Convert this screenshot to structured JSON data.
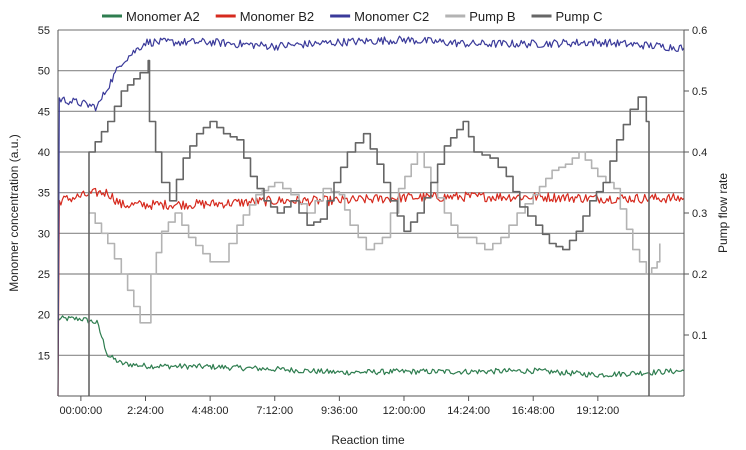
{
  "chart_data": {
    "type": "line",
    "xlabel": "Reaction time",
    "ylabel_left": "Monomer concentration (a.u.)",
    "ylabel_right": "Pump flow rate",
    "x_ticks": [
      "00:00:00",
      "2:24:00",
      "4:48:00",
      "7:12:00",
      "9:36:00",
      "12:00:00",
      "14:24:00",
      "16:48:00",
      "19:12:00"
    ],
    "x_tick_hours": [
      0,
      2.4,
      4.8,
      7.2,
      9.6,
      12.0,
      14.4,
      16.8,
      19.2
    ],
    "xlim_hours": [
      -0.85,
      22.4
    ],
    "ylim_left": [
      10,
      55
    ],
    "y_ticks_left": [
      15,
      20,
      25,
      30,
      35,
      40,
      45,
      50,
      55
    ],
    "ylim_right": [
      0,
      0.6
    ],
    "y_ticks_right": [
      "0.1",
      "0.2",
      "0.3",
      "0.4",
      "0.5",
      "0.6"
    ],
    "grid": true,
    "legend_position": "top",
    "series": [
      {
        "name": "Monomer A2",
        "color": "#2e7d4f",
        "axis": "left",
        "points": [
          [
            -0.85,
            19.5
          ],
          [
            0,
            19.5
          ],
          [
            0.6,
            19
          ],
          [
            1,
            15
          ],
          [
            1.5,
            14
          ],
          [
            2.4,
            13.7
          ],
          [
            4.8,
            13.6
          ],
          [
            7.2,
            13.3
          ],
          [
            9.6,
            12.9
          ],
          [
            12,
            13
          ],
          [
            14.4,
            13
          ],
          [
            16.8,
            13.1
          ],
          [
            19.2,
            12.6
          ],
          [
            20.5,
            12.8
          ],
          [
            22.4,
            13.1
          ]
        ]
      },
      {
        "name": "Monomer B2",
        "color": "#d62a1e",
        "axis": "left",
        "points": [
          [
            -0.85,
            10
          ],
          [
            -0.8,
            34
          ],
          [
            0.6,
            35
          ],
          [
            1,
            35
          ],
          [
            1.5,
            33.5
          ],
          [
            2.4,
            33.5
          ],
          [
            4.8,
            33.6
          ],
          [
            7.2,
            34
          ],
          [
            9.6,
            34
          ],
          [
            12,
            34.4
          ],
          [
            14.4,
            34.5
          ],
          [
            16.8,
            34.5
          ],
          [
            19.2,
            34.3
          ],
          [
            22.4,
            34.3
          ]
        ]
      },
      {
        "name": "Monomer C2",
        "color": "#3a3a9a",
        "axis": "left",
        "points": [
          [
            -0.85,
            10
          ],
          [
            -0.8,
            46.5
          ],
          [
            0,
            46
          ],
          [
            0.6,
            45.5
          ],
          [
            1,
            48
          ],
          [
            1.5,
            51
          ],
          [
            2.4,
            53.5
          ],
          [
            4.8,
            53.5
          ],
          [
            7.2,
            53
          ],
          [
            9.6,
            53.5
          ],
          [
            12,
            53.8
          ],
          [
            14.4,
            53.3
          ],
          [
            16.8,
            53.3
          ],
          [
            19.2,
            53.5
          ],
          [
            22.4,
            52.8
          ]
        ]
      },
      {
        "name": "Pump B",
        "color": "#b3b3b3",
        "axis": "right",
        "points": [
          [
            0.3,
            0.3
          ],
          [
            1,
            0.25
          ],
          [
            1.5,
            0.2
          ],
          [
            2.2,
            0.12
          ],
          [
            2.4,
            0.12
          ],
          [
            2.6,
            0.2
          ],
          [
            3,
            0.27
          ],
          [
            3.5,
            0.3
          ],
          [
            4,
            0.26
          ],
          [
            4.8,
            0.22
          ],
          [
            5.2,
            0.22
          ],
          [
            5.8,
            0.28
          ],
          [
            6.5,
            0.33
          ],
          [
            7.2,
            0.35
          ],
          [
            7.8,
            0.33
          ],
          [
            8.4,
            0.3
          ],
          [
            9,
            0.34
          ],
          [
            9.6,
            0.33
          ],
          [
            10,
            0.28
          ],
          [
            10.6,
            0.24
          ],
          [
            11.2,
            0.26
          ],
          [
            11.8,
            0.34
          ],
          [
            12.5,
            0.4
          ],
          [
            13,
            0.35
          ],
          [
            13.5,
            0.3
          ],
          [
            14,
            0.26
          ],
          [
            14.4,
            0.26
          ],
          [
            15,
            0.24
          ],
          [
            15.6,
            0.26
          ],
          [
            16.2,
            0.3
          ],
          [
            16.8,
            0.33
          ],
          [
            17.5,
            0.37
          ],
          [
            18,
            0.38
          ],
          [
            18.5,
            0.4
          ],
          [
            19.2,
            0.36
          ],
          [
            19.8,
            0.34
          ],
          [
            20.5,
            0.24
          ],
          [
            21,
            0.2
          ],
          [
            21.4,
            0.22
          ],
          [
            21.5,
            0.25
          ]
        ]
      },
      {
        "name": "Pump C",
        "color": "#666666",
        "axis": "right",
        "points": [
          [
            0.3,
            0
          ],
          [
            0.3,
            0.4
          ],
          [
            1,
            0.45
          ],
          [
            1.5,
            0.5
          ],
          [
            2.2,
            0.53
          ],
          [
            2.5,
            0.55
          ],
          [
            2.55,
            0.45
          ],
          [
            3,
            0.35
          ],
          [
            3.3,
            0.32
          ],
          [
            3.8,
            0.39
          ],
          [
            4.3,
            0.43
          ],
          [
            4.8,
            0.45
          ],
          [
            5.3,
            0.43
          ],
          [
            5.8,
            0.42
          ],
          [
            6.3,
            0.36
          ],
          [
            6.8,
            0.32
          ],
          [
            7.3,
            0.3
          ],
          [
            7.8,
            0.32
          ],
          [
            8.4,
            0.28
          ],
          [
            8.9,
            0.29
          ],
          [
            9.4,
            0.35
          ],
          [
            9.9,
            0.4
          ],
          [
            10.5,
            0.43
          ],
          [
            11,
            0.38
          ],
          [
            11.5,
            0.32
          ],
          [
            12,
            0.27
          ],
          [
            12.5,
            0.3
          ],
          [
            13,
            0.35
          ],
          [
            13.5,
            0.41
          ],
          [
            14.2,
            0.45
          ],
          [
            14.6,
            0.4
          ],
          [
            15.2,
            0.39
          ],
          [
            15.8,
            0.36
          ],
          [
            16.3,
            0.31
          ],
          [
            16.9,
            0.28
          ],
          [
            17.4,
            0.25
          ],
          [
            17.9,
            0.24
          ],
          [
            18.4,
            0.27
          ],
          [
            18.9,
            0.32
          ],
          [
            19.4,
            0.35
          ],
          [
            19.9,
            0.42
          ],
          [
            20.4,
            0.47
          ],
          [
            20.7,
            0.49
          ],
          [
            21,
            0.45
          ],
          [
            21.1,
            0
          ]
        ]
      }
    ]
  }
}
